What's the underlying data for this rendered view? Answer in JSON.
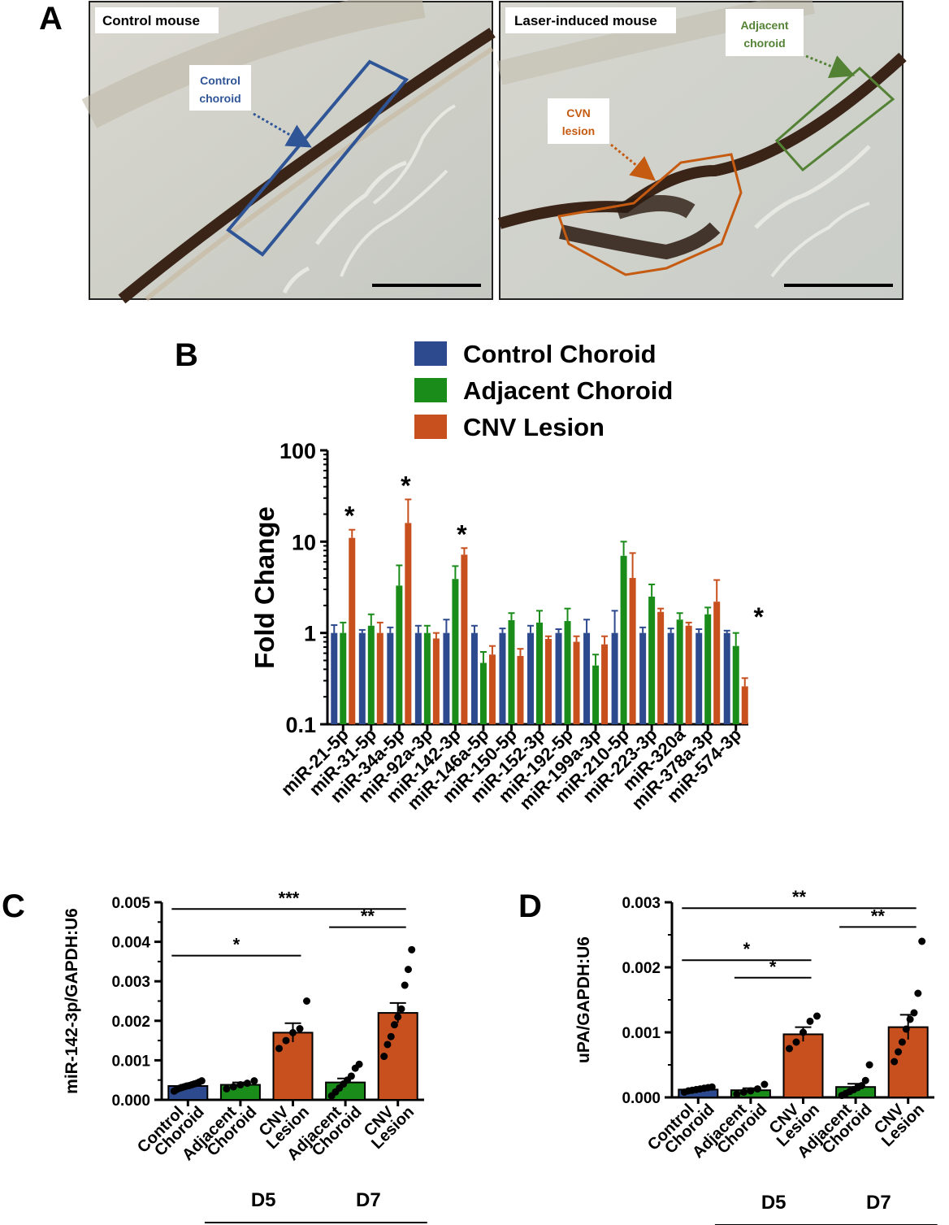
{
  "panel_a": {
    "letter": "A",
    "left_photo": {
      "label": "Control mouse",
      "callout": [
        "Control",
        "choroid"
      ],
      "callout_color": "#2f5597",
      "box_color": "#2f5597"
    },
    "right_photo": {
      "label": "Laser-induced mouse",
      "callout_adjacent": [
        "Adjacent",
        "choroid"
      ],
      "adjacent_color": "#548235",
      "callout_lesion": [
        "CVN",
        "lesion"
      ],
      "lesion_color": "#c55a11"
    }
  },
  "chart_data": [
    {
      "id": "B",
      "letter": "B",
      "type": "bar",
      "yscale": "log",
      "ylabel": "Fold Change",
      "ylim": [
        0.1,
        100
      ],
      "yticks": [
        "0.1",
        "1",
        "10",
        "100"
      ],
      "legend": [
        {
          "name": "Control Choroid",
          "color": "#2e4a8e"
        },
        {
          "name": "Adjacent Choroid",
          "color": "#1a8c1a"
        },
        {
          "name": "CNV Lesion",
          "color": "#c8501e"
        }
      ],
      "categories": [
        "miR-21-5p",
        "miR-31-5p",
        "miR-34a-5p",
        "miR-92a-3p",
        "miR-142-3p",
        "miR-146a-5p",
        "miR-150-5p",
        "miR-152-3p",
        "miR-192-5p",
        "miR-199a-3p",
        "miR-210-5p",
        "miR-223-3p",
        "miR-320a",
        "miR-378a-3p",
        "miR-574-3p"
      ],
      "series": [
        {
          "name": "Control Choroid",
          "color": "#2e4a8e",
          "values": [
            1.0,
            1.0,
            1.0,
            1.0,
            1.0,
            1.0,
            1.0,
            1.0,
            1.0,
            1.0,
            1.0,
            1.0,
            1.0,
            1.0,
            1.0
          ],
          "errors": [
            1.22,
            1.08,
            1.15,
            1.2,
            1.4,
            1.2,
            1.12,
            1.2,
            1.1,
            1.4,
            1.75,
            1.15,
            1.12,
            1.1,
            1.06
          ]
        },
        {
          "name": "Adjacent Choroid",
          "color": "#1a8c1a",
          "values": [
            1.0,
            1.2,
            3.3,
            1.0,
            3.9,
            0.47,
            1.38,
            1.3,
            1.35,
            0.44,
            7.0,
            2.5,
            1.4,
            1.6,
            0.72
          ],
          "errors": [
            1.3,
            1.6,
            5.5,
            1.2,
            5.4,
            0.62,
            1.65,
            1.75,
            1.85,
            0.58,
            10.0,
            3.4,
            1.65,
            1.9,
            1.0
          ]
        },
        {
          "name": "CNV Lesion",
          "color": "#c8501e",
          "values": [
            11.0,
            1.0,
            16.0,
            0.87,
            7.2,
            0.58,
            0.56,
            0.86,
            0.8,
            0.75,
            4.0,
            1.7,
            1.2,
            2.2,
            0.26
          ],
          "errors": [
            13.5,
            1.3,
            29.0,
            1.0,
            8.5,
            0.72,
            0.67,
            0.92,
            0.92,
            0.92,
            7.5,
            1.85,
            1.3,
            3.8,
            0.32
          ]
        }
      ],
      "significance": [
        {
          "category": "miR-21-5p",
          "label": "*"
        },
        {
          "category": "miR-34a-5p",
          "label": "*"
        },
        {
          "category": "miR-142-3p",
          "label": "*"
        },
        {
          "category": "miR-574-3p",
          "label": "*"
        }
      ]
    },
    {
      "id": "C",
      "letter": "C",
      "type": "bar",
      "ylabel": "miR-142-3p/GAPDH:U6",
      "ylim": [
        0,
        0.005
      ],
      "yticks": [
        "0.000",
        "0.001",
        "0.002",
        "0.003",
        "0.004",
        "0.005"
      ],
      "categories": [
        [
          "Control",
          "Choroid"
        ],
        [
          "Adjacent",
          "Choroid"
        ],
        [
          "CNV",
          "Lesion"
        ],
        [
          "Adjacent",
          "Choroid"
        ],
        [
          "CNV",
          "Lesion"
        ]
      ],
      "colors": [
        "#2e4a8e",
        "#1a8c1a",
        "#c8501e",
        "#1a8c1a",
        "#c8501e"
      ],
      "values": [
        0.00035,
        0.00038,
        0.0017,
        0.00044,
        0.0022
      ],
      "sem": [
        3e-05,
        6e-05,
        0.00024,
        0.0001,
        0.00025
      ],
      "points": [
        [
          0.00022,
          0.00026,
          0.00029,
          0.00031,
          0.00033,
          0.00035,
          0.00036,
          0.00038,
          0.0004,
          0.00042,
          0.00045,
          0.00048
        ],
        [
          0.00028,
          0.00033,
          0.00038,
          0.00042,
          0.00048
        ],
        [
          0.0013,
          0.0015,
          0.0017,
          0.0018,
          0.0025
        ],
        [
          0.0001,
          0.0002,
          0.0003,
          0.0004,
          0.0005,
          0.0006,
          0.0008,
          0.0009
        ],
        [
          0.0011,
          0.0014,
          0.0016,
          0.0019,
          0.0021,
          0.0023,
          0.0029,
          0.0033,
          0.0038
        ]
      ],
      "groups": [
        {
          "label": "D5",
          "from": 1,
          "to": 2
        },
        {
          "label": "D7",
          "from": 3,
          "to": 4
        }
      ],
      "comparisons": [
        {
          "from": 0,
          "to": 4,
          "y": 0.00483,
          "label": "***"
        },
        {
          "from": 3,
          "to": 4,
          "y": 0.00437,
          "label": "**"
        },
        {
          "from": 0,
          "to": 2,
          "y": 0.00365,
          "label": "*"
        }
      ]
    },
    {
      "id": "D",
      "letter": "D",
      "type": "bar",
      "ylabel": "uPA/GAPDH:U6",
      "ylim": [
        0,
        0.003
      ],
      "yticks": [
        "0.000",
        "0.001",
        "0.002",
        "0.003"
      ],
      "categories": [
        [
          "Control",
          "Choroid"
        ],
        [
          "Adjacent",
          "Choroid"
        ],
        [
          "CNV",
          "Lesion"
        ],
        [
          "Adjacent",
          "Choroid"
        ],
        [
          "CNV",
          "Lesion"
        ]
      ],
      "colors": [
        "#2e4a8e",
        "#1a8c1a",
        "#c8501e",
        "#1a8c1a",
        "#c8501e"
      ],
      "values": [
        0.00012,
        0.00011,
        0.00097,
        0.00016,
        0.00108
      ],
      "sem": [
        1e-05,
        3e-05,
        0.00011,
        5e-05,
        0.00019
      ],
      "points": [
        [
          8e-05,
          0.0001,
          0.00011,
          0.00012,
          0.00013,
          0.00014,
          0.00015,
          0.00016
        ],
        [
          5e-05,
          8e-05,
          0.0001,
          0.00013,
          0.0002
        ],
        [
          0.00075,
          0.00085,
          0.001,
          0.00117,
          0.00125
        ],
        [
          3e-05,
          6e-05,
          9e-05,
          0.00012,
          0.00015,
          0.00018,
          0.00026,
          0.0005
        ],
        [
          0.00055,
          0.0007,
          0.00085,
          0.00105,
          0.0012,
          0.0013,
          0.0016,
          0.0024
        ]
      ],
      "groups": [
        {
          "label": "D5",
          "from": 1,
          "to": 2
        },
        {
          "label": "D7",
          "from": 3,
          "to": 4
        }
      ],
      "comparisons": [
        {
          "from": 0,
          "to": 4,
          "y": 0.00291,
          "label": "**"
        },
        {
          "from": 3,
          "to": 4,
          "y": 0.00262,
          "label": "**"
        },
        {
          "from": 0,
          "to": 2,
          "y": 0.00211,
          "label": "*"
        },
        {
          "from": 1,
          "to": 2,
          "y": 0.00184,
          "label": "*"
        }
      ]
    }
  ]
}
